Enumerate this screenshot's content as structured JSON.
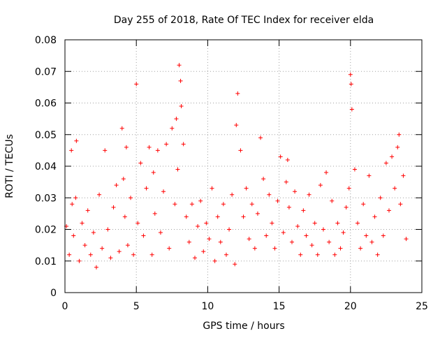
{
  "chart_data": {
    "type": "scatter",
    "title": "Day 255 of 2018, Rate Of TEC Index for receiver elda",
    "xlabel": "GPS time / hours",
    "ylabel": "ROTI / TECUs",
    "xlim": [
      0,
      25
    ],
    "ylim": [
      0,
      0.08
    ],
    "x_ticks": [
      0,
      5,
      10,
      15,
      20,
      25
    ],
    "y_ticks": [
      0,
      0.01,
      0.02,
      0.03,
      0.04,
      0.05,
      0.06,
      0.07,
      0.08
    ],
    "x_tick_labels": [
      "0",
      "5",
      "10",
      "15",
      "20",
      "25"
    ],
    "y_tick_labels": [
      "0",
      "0.01",
      "0.02",
      "0.03",
      "0.04",
      "0.05",
      "0.06",
      "0.07",
      "0.08"
    ],
    "grid": true,
    "marker": "+",
    "color": "#ff0000",
    "series": [
      {
        "x": [
          0.1,
          0.3,
          0.45,
          0.5,
          0.6,
          0.75,
          0.8,
          1.0,
          1.2,
          1.4,
          1.6,
          1.8,
          2.0,
          2.2,
          2.4,
          2.6,
          2.8,
          3.0,
          3.2,
          3.4,
          3.6,
          3.8,
          4.0,
          4.1,
          4.2,
          4.3,
          4.4,
          4.6,
          4.8,
          5.0,
          5.1,
          5.3,
          5.5,
          5.7,
          5.9,
          6.1,
          6.2,
          6.3,
          6.5,
          6.7,
          6.9,
          7.1,
          7.3,
          7.5,
          7.7,
          7.8,
          7.9,
          8.0,
          8.1,
          8.15,
          8.3,
          8.5,
          8.7,
          8.9,
          9.1,
          9.3,
          9.5,
          9.7,
          9.9,
          10.1,
          10.3,
          10.5,
          10.7,
          10.9,
          11.1,
          11.3,
          11.5,
          11.7,
          11.9,
          12.0,
          12.1,
          12.3,
          12.5,
          12.7,
          12.9,
          13.1,
          13.3,
          13.5,
          13.7,
          13.9,
          14.1,
          14.3,
          14.5,
          14.7,
          14.9,
          15.1,
          15.3,
          15.5,
          15.6,
          15.7,
          15.9,
          16.1,
          16.3,
          16.5,
          16.7,
          16.9,
          17.1,
          17.3,
          17.5,
          17.7,
          17.9,
          18.1,
          18.3,
          18.5,
          18.7,
          18.9,
          19.1,
          19.3,
          19.5,
          19.7,
          19.9,
          20.0,
          20.05,
          20.1,
          20.3,
          20.5,
          20.7,
          20.9,
          21.1,
          21.3,
          21.5,
          21.7,
          21.9,
          22.1,
          22.3,
          22.5,
          22.7,
          22.9,
          23.1,
          23.3,
          23.4,
          23.5,
          23.7,
          23.9
        ],
        "y": [
          0.021,
          0.012,
          0.045,
          0.028,
          0.018,
          0.03,
          0.048,
          0.01,
          0.022,
          0.015,
          0.026,
          0.012,
          0.019,
          0.008,
          0.031,
          0.014,
          0.045,
          0.02,
          0.011,
          0.027,
          0.034,
          0.013,
          0.052,
          0.036,
          0.024,
          0.046,
          0.015,
          0.03,
          0.012,
          0.066,
          0.022,
          0.041,
          0.018,
          0.033,
          0.046,
          0.012,
          0.038,
          0.025,
          0.045,
          0.019,
          0.032,
          0.047,
          0.014,
          0.052,
          0.028,
          0.055,
          0.039,
          0.072,
          0.067,
          0.059,
          0.047,
          0.024,
          0.016,
          0.028,
          0.011,
          0.021,
          0.029,
          0.013,
          0.022,
          0.017,
          0.033,
          0.01,
          0.024,
          0.016,
          0.028,
          0.012,
          0.02,
          0.031,
          0.009,
          0.053,
          0.063,
          0.045,
          0.024,
          0.033,
          0.017,
          0.028,
          0.014,
          0.025,
          0.049,
          0.036,
          0.018,
          0.031,
          0.022,
          0.014,
          0.029,
          0.043,
          0.019,
          0.035,
          0.042,
          0.027,
          0.016,
          0.032,
          0.021,
          0.012,
          0.026,
          0.018,
          0.031,
          0.015,
          0.022,
          0.012,
          0.034,
          0.02,
          0.038,
          0.016,
          0.029,
          0.012,
          0.022,
          0.014,
          0.019,
          0.027,
          0.033,
          0.069,
          0.066,
          0.058,
          0.039,
          0.022,
          0.014,
          0.028,
          0.018,
          0.037,
          0.016,
          0.024,
          0.012,
          0.03,
          0.018,
          0.041,
          0.026,
          0.043,
          0.033,
          0.046,
          0.05,
          0.028,
          0.037,
          0.017
        ],
        "label_text": ""
      }
    ]
  }
}
